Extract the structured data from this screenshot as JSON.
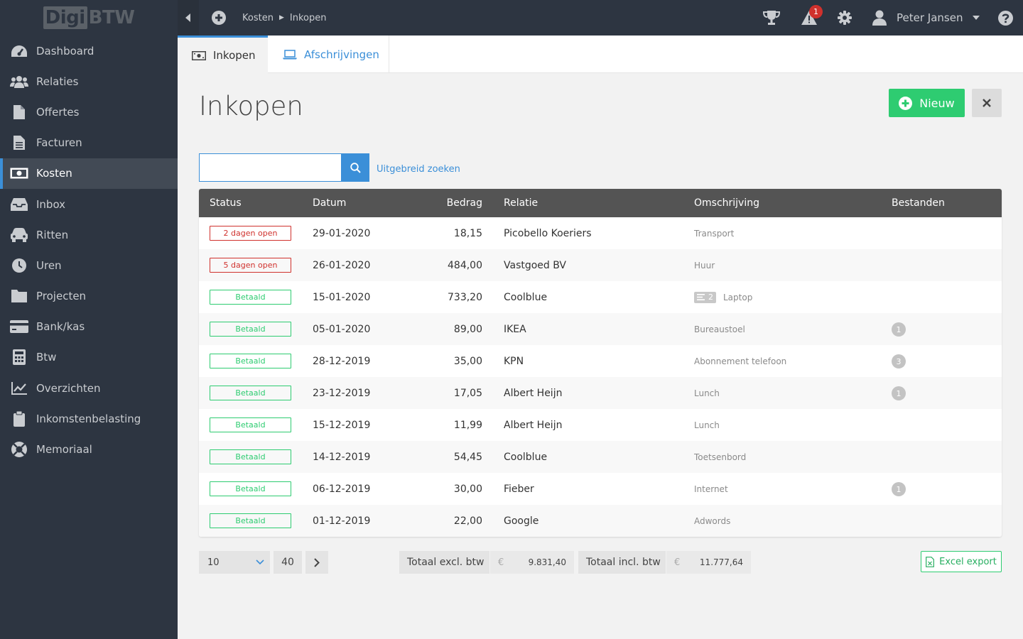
{
  "app": {
    "logo_boxed": "Digi",
    "logo_rest": "BTW"
  },
  "header": {
    "breadcrumb": [
      "Kosten",
      "Inkopen"
    ],
    "alert_count": "1",
    "user_name": "Peter Jansen",
    "icons": [
      "plus-circle-icon",
      "trophy-icon",
      "warning-icon",
      "gear-icon",
      "user-icon",
      "help-icon"
    ]
  },
  "sidebar": {
    "items": [
      {
        "label": "Dashboard",
        "icon": "dashboard-icon"
      },
      {
        "label": "Relaties",
        "icon": "users-icon"
      },
      {
        "label": "Offertes",
        "icon": "file-icon"
      },
      {
        "label": "Facturen",
        "icon": "file-text-icon"
      },
      {
        "label": "Kosten",
        "icon": "money-icon"
      },
      {
        "label": "Inbox",
        "icon": "inbox-icon"
      },
      {
        "label": "Ritten",
        "icon": "car-icon"
      },
      {
        "label": "Uren",
        "icon": "clock-icon"
      },
      {
        "label": "Projecten",
        "icon": "folder-icon"
      },
      {
        "label": "Bank/kas",
        "icon": "credit-card-icon"
      },
      {
        "label": "Btw",
        "icon": "calculator-icon"
      },
      {
        "label": "Overzichten",
        "icon": "chart-icon"
      },
      {
        "label": "Inkomstenbelasting",
        "icon": "clipboard-icon"
      },
      {
        "label": "Memoriaal",
        "icon": "lifebuoy-icon"
      }
    ],
    "active": "Kosten"
  },
  "tabs": [
    {
      "label": "Inkopen",
      "icon": "money-icon"
    },
    {
      "label": "Afschrijvingen",
      "icon": "laptop-icon"
    }
  ],
  "page": {
    "title": "Inkopen",
    "new_label": "Nieuw",
    "search_placeholder": "",
    "advanced_search": "Uitgebreid zoeken"
  },
  "table": {
    "columns": [
      "Status",
      "Datum",
      "Bedrag",
      "Relatie",
      "Omschrijving",
      "Bestanden"
    ],
    "rows": [
      {
        "status": "2 dagen open",
        "status_type": "open",
        "date": "29-01-2020",
        "amount": "18,15",
        "relation": "Picobello Koeriers",
        "description": "Transport",
        "files": ""
      },
      {
        "status": "5 dagen open",
        "status_type": "open",
        "date": "26-01-2020",
        "amount": "484,00",
        "relation": "Vastgoed BV",
        "description": "Huur",
        "files": ""
      },
      {
        "status": "Betaald",
        "status_type": "paid",
        "date": "15-01-2020",
        "amount": "733,20",
        "relation": "Coolblue",
        "description": "Laptop",
        "note_count": "2",
        "files": ""
      },
      {
        "status": "Betaald",
        "status_type": "paid",
        "date": "05-01-2020",
        "amount": "89,00",
        "relation": "IKEA",
        "description": "Bureaustoel",
        "files": "1"
      },
      {
        "status": "Betaald",
        "status_type": "paid",
        "date": "28-12-2019",
        "amount": "35,00",
        "relation": "KPN",
        "description": "Abonnement telefoon",
        "files": "3"
      },
      {
        "status": "Betaald",
        "status_type": "paid",
        "date": "23-12-2019",
        "amount": "17,05",
        "relation": "Albert Heijn",
        "description": "Lunch",
        "files": "1"
      },
      {
        "status": "Betaald",
        "status_type": "paid",
        "date": "15-12-2019",
        "amount": "11,99",
        "relation": "Albert Heijn",
        "description": "Lunch",
        "files": ""
      },
      {
        "status": "Betaald",
        "status_type": "paid",
        "date": "14-12-2019",
        "amount": "54,45",
        "relation": "Coolblue",
        "description": "Toetsenbord",
        "files": ""
      },
      {
        "status": "Betaald",
        "status_type": "paid",
        "date": "06-12-2019",
        "amount": "30,00",
        "relation": "Fieber",
        "description": "Internet",
        "files": "1"
      },
      {
        "status": "Betaald",
        "status_type": "paid",
        "date": "01-12-2019",
        "amount": "22,00",
        "relation": "Google",
        "description": "Adwords",
        "files": ""
      }
    ]
  },
  "footer": {
    "per_page": "10",
    "total_count": "40",
    "total_excl_label": "Totaal excl. btw",
    "total_excl_value": "9.831,40",
    "total_incl_label": "Totaal incl. btw",
    "total_incl_value": "11.777,64",
    "currency": "€",
    "excel_label": "Excel export"
  },
  "colors": {
    "sidebar": "#2d3541",
    "accent": "#3b8fd8",
    "success": "#2ecc71",
    "danger": "#d0312d",
    "table_header": "#545454"
  }
}
